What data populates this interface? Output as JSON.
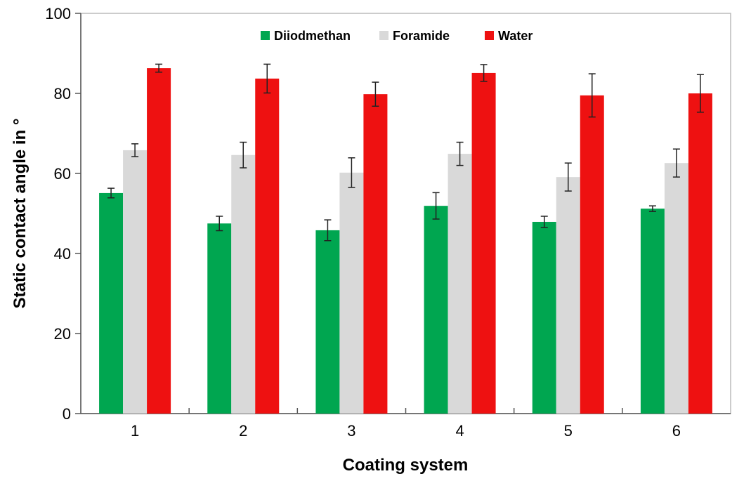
{
  "chart_data": {
    "type": "bar",
    "title": "",
    "xlabel": "Coating system",
    "ylabel": "Static contact angle in °",
    "ylim": [
      0,
      100
    ],
    "yticks": [
      0,
      20,
      40,
      60,
      80,
      100
    ],
    "categories": [
      "1",
      "2",
      "3",
      "4",
      "5",
      "6"
    ],
    "legend_position": "top-center",
    "grid": false,
    "error_bars": true,
    "series": [
      {
        "name": "Diiodmethan",
        "color": "#00a650",
        "values": [
          55.1,
          47.5,
          45.8,
          51.9,
          47.9,
          51.2
        ],
        "errors": [
          1.2,
          1.8,
          2.6,
          3.3,
          1.4,
          0.7
        ]
      },
      {
        "name": "Foramide",
        "color": "#d9d9d9",
        "values": [
          65.8,
          64.6,
          60.2,
          64.9,
          59.1,
          62.6
        ],
        "errors": [
          1.6,
          3.2,
          3.7,
          2.9,
          3.5,
          3.5
        ]
      },
      {
        "name": "Water",
        "color": "#ee1111",
        "values": [
          86.3,
          83.7,
          79.8,
          85.1,
          79.5,
          80.0
        ],
        "errors": [
          1.0,
          3.6,
          3.0,
          2.1,
          5.4,
          4.7
        ]
      }
    ]
  }
}
